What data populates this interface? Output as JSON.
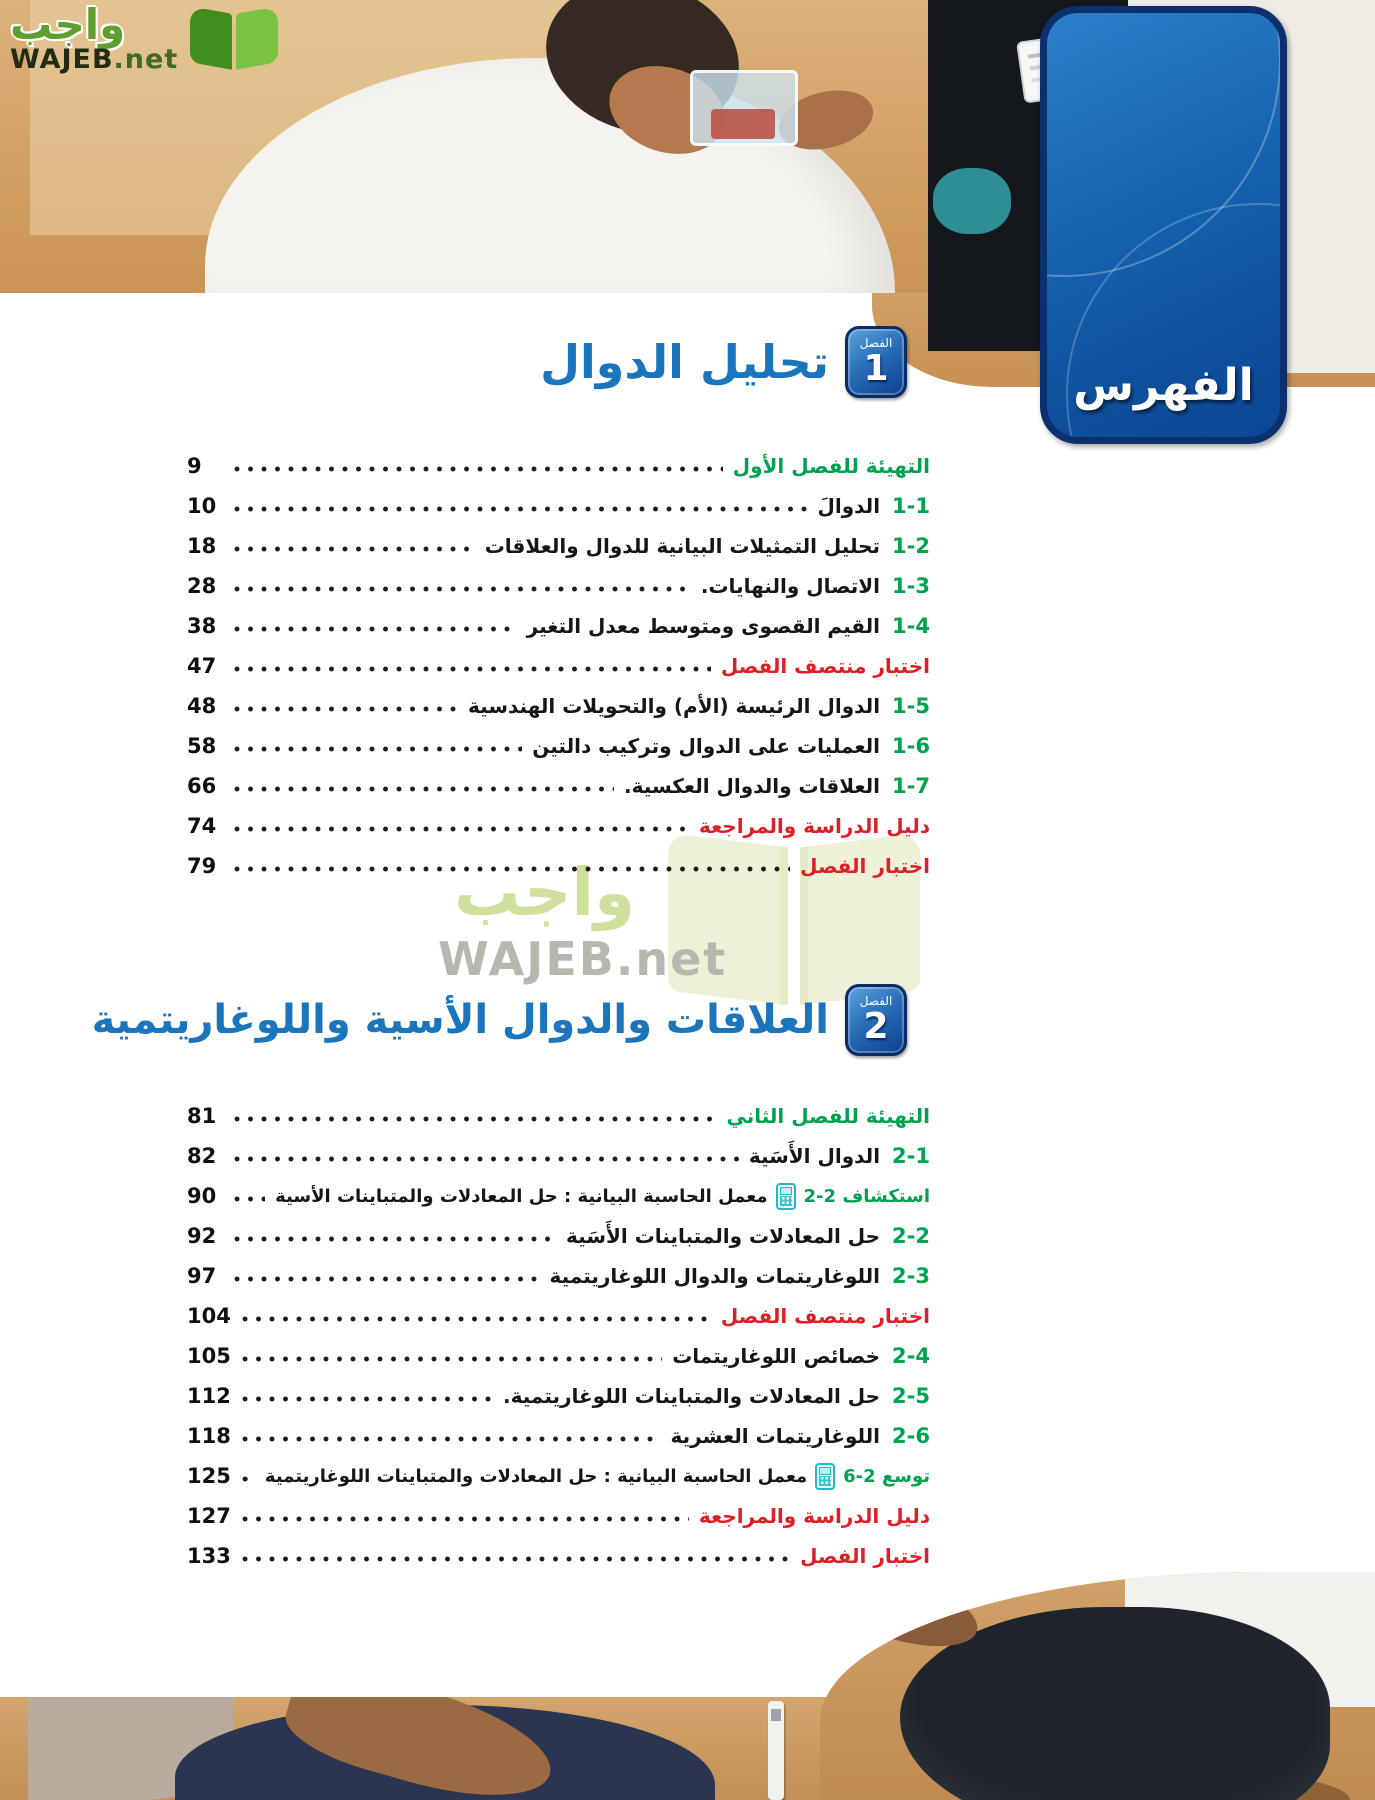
{
  "logo": {
    "arabic": "واجب",
    "latin": "WAJEB",
    "tld": ".net"
  },
  "banner": {
    "label": "الفهرس"
  },
  "watermark": {
    "arabic": "واجب",
    "latin": "WAJEB.net"
  },
  "colors": {
    "green": "#00A14F",
    "red": "#DE1F26",
    "title_blue": "#1B75BC",
    "banner_blue": "#0E4F9C",
    "calculator_teal": "#29B7C6"
  },
  "chapters": [
    {
      "badge": {
        "word": "الفصل",
        "number": "1"
      },
      "title": "تحليل الدوال",
      "rows": [
        {
          "type": "prep",
          "label": "التهيئة للفصل الأول",
          "page": "9"
        },
        {
          "type": "section",
          "num": "1-1",
          "label": "الدوالَ",
          "page": "10"
        },
        {
          "type": "section",
          "num": "1-2",
          "label": "تحليل التمثيلات البيانية للدوال والعلاقات",
          "page": "18"
        },
        {
          "type": "section",
          "num": "1-3",
          "label": "الاتصال والنهايات.",
          "page": "28"
        },
        {
          "type": "section",
          "num": "1-4",
          "label": "القيم القصوى ومتوسط معدل التغير",
          "page": "38"
        },
        {
          "type": "red",
          "label": "اختبار منتصف الفصل",
          "page": "47"
        },
        {
          "type": "section",
          "num": "1-5",
          "label": "الدوال الرئيسة (الأم) والتحويلات الهندسية",
          "page": "48"
        },
        {
          "type": "section",
          "num": "1-6",
          "label": "العمليات على الدوال وتركيب دالتين",
          "page": "58"
        },
        {
          "type": "section",
          "num": "1-7",
          "label": "العلاقات والدوال العكسية.",
          "page": "66"
        },
        {
          "type": "red",
          "label": "دليل الدراسة والمراجعة",
          "page": "74"
        },
        {
          "type": "red",
          "label": "اختبار الفصل",
          "page": "79"
        }
      ]
    },
    {
      "badge": {
        "word": "الفصل",
        "number": "2"
      },
      "title": "العلاقات والدوال الأسية واللوغاريتمية",
      "rows": [
        {
          "type": "prep",
          "label": "التهيئة للفصل الثاني",
          "page": "81"
        },
        {
          "type": "section",
          "num": "2-1",
          "label": "الدوال الأَسَية",
          "page": "82"
        },
        {
          "type": "lab",
          "num": "استكشاف 2-2",
          "icon": "calculator",
          "label": "معمل الحاسبة البيانية : حل المعادلات والمتباينات الأسية",
          "page": "90"
        },
        {
          "type": "section",
          "num": "2-2",
          "label": "حل المعادلات والمتباينات الأَسَية",
          "page": "92"
        },
        {
          "type": "section",
          "num": "2-3",
          "label": "اللوغاريتمات والدوال اللوغاريتمية",
          "page": "97"
        },
        {
          "type": "red",
          "label": "اختبار منتصف الفصل",
          "page": "104"
        },
        {
          "type": "section",
          "num": "2-4",
          "label": "خصائص اللوغاريتمات",
          "page": "105"
        },
        {
          "type": "section",
          "num": "2-5",
          "label": "حل المعادلات والمتباينات اللوغاريتمية.",
          "page": "112"
        },
        {
          "type": "section",
          "num": "2-6",
          "label": "اللوغاريتمات العشرية",
          "page": "118"
        },
        {
          "type": "lab",
          "num": "توسع 2-6",
          "icon": "calculator",
          "label": "معمل الحاسبة البيانية : حل المعادلات والمتباينات اللوغاريتمية",
          "page": "125"
        },
        {
          "type": "red",
          "label": "دليل الدراسة والمراجعة",
          "page": "127"
        },
        {
          "type": "red",
          "label": "اختبار الفصل",
          "page": "133"
        }
      ]
    }
  ]
}
